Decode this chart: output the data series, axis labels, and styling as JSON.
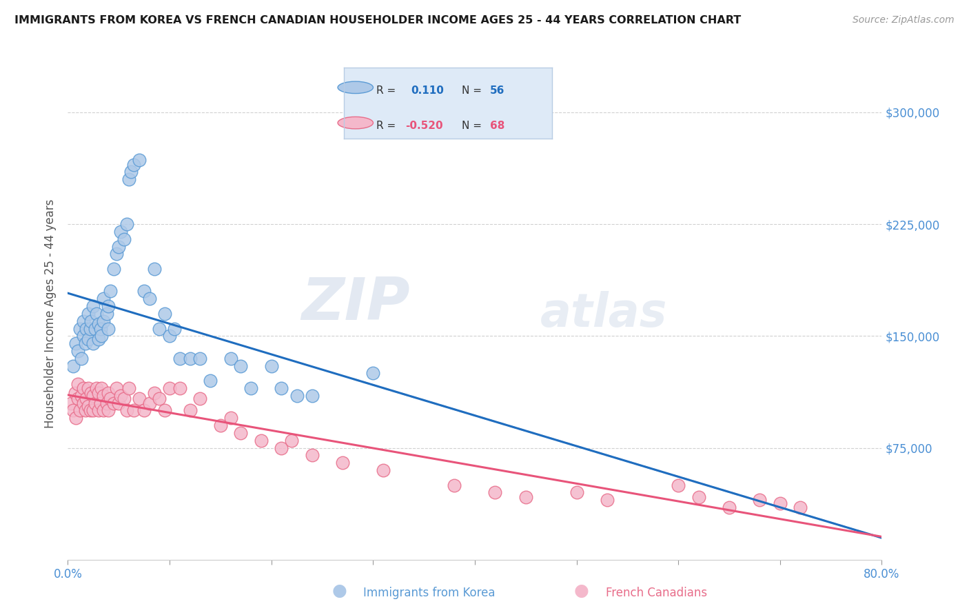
{
  "title": "IMMIGRANTS FROM KOREA VS FRENCH CANADIAN HOUSEHOLDER INCOME AGES 25 - 44 YEARS CORRELATION CHART",
  "source": "Source: ZipAtlas.com",
  "ylabel": "Householder Income Ages 25 - 44 years",
  "xmin": 0.0,
  "xmax": 0.8,
  "ymin": 0,
  "ymax": 330000,
  "ytick_positions": [
    75000,
    150000,
    225000,
    300000
  ],
  "ytick_labels": [
    "$75,000",
    "$150,000",
    "$225,000",
    "$300,000"
  ],
  "xticks": [
    0.0,
    0.1,
    0.2,
    0.3,
    0.4,
    0.5,
    0.6,
    0.7,
    0.8
  ],
  "xtick_labels": [
    "0.0%",
    "",
    "",
    "",
    "",
    "",
    "",
    "",
    "80.0%"
  ],
  "watermark_line1": "ZIP",
  "watermark_line2": "atlas",
  "korea_fill": "#aec9e8",
  "korea_edge": "#5b9bd5",
  "french_fill": "#f4b8cb",
  "french_edge": "#e86d8a",
  "korea_line_color": "#1f6dbf",
  "french_line_color": "#e8547a",
  "korea_dash_color": "#b0c8e0",
  "grid_color": "#d0d0d0",
  "r_korea": "0.110",
  "n_korea": "56",
  "r_french": "-0.520",
  "n_french": "68",
  "legend_bg": "#deeaf7",
  "korea_scatter_x": [
    0.005,
    0.008,
    0.01,
    0.012,
    0.013,
    0.015,
    0.015,
    0.017,
    0.018,
    0.02,
    0.02,
    0.022,
    0.023,
    0.025,
    0.025,
    0.027,
    0.028,
    0.03,
    0.03,
    0.032,
    0.033,
    0.035,
    0.035,
    0.038,
    0.04,
    0.04,
    0.042,
    0.045,
    0.048,
    0.05,
    0.052,
    0.055,
    0.058,
    0.06,
    0.062,
    0.065,
    0.07,
    0.075,
    0.08,
    0.085,
    0.09,
    0.095,
    0.1,
    0.105,
    0.11,
    0.12,
    0.13,
    0.14,
    0.16,
    0.17,
    0.18,
    0.2,
    0.21,
    0.225,
    0.24,
    0.3
  ],
  "korea_scatter_y": [
    130000,
    145000,
    140000,
    155000,
    135000,
    150000,
    160000,
    145000,
    155000,
    148000,
    165000,
    155000,
    160000,
    145000,
    170000,
    155000,
    165000,
    148000,
    158000,
    155000,
    150000,
    160000,
    175000,
    165000,
    155000,
    170000,
    180000,
    195000,
    205000,
    210000,
    220000,
    215000,
    225000,
    255000,
    260000,
    265000,
    268000,
    180000,
    175000,
    195000,
    155000,
    165000,
    150000,
    155000,
    135000,
    135000,
    135000,
    120000,
    135000,
    130000,
    115000,
    130000,
    115000,
    110000,
    110000,
    125000
  ],
  "french_scatter_x": [
    0.003,
    0.005,
    0.007,
    0.008,
    0.01,
    0.01,
    0.012,
    0.013,
    0.015,
    0.015,
    0.017,
    0.018,
    0.02,
    0.02,
    0.022,
    0.023,
    0.025,
    0.025,
    0.027,
    0.028,
    0.03,
    0.03,
    0.032,
    0.033,
    0.035,
    0.035,
    0.038,
    0.04,
    0.04,
    0.042,
    0.045,
    0.048,
    0.05,
    0.052,
    0.055,
    0.058,
    0.06,
    0.065,
    0.07,
    0.075,
    0.08,
    0.085,
    0.09,
    0.095,
    0.1,
    0.11,
    0.12,
    0.13,
    0.15,
    0.16,
    0.17,
    0.19,
    0.21,
    0.22,
    0.24,
    0.27,
    0.31,
    0.38,
    0.42,
    0.45,
    0.5,
    0.53,
    0.6,
    0.62,
    0.65,
    0.68,
    0.7,
    0.72
  ],
  "french_scatter_y": [
    105000,
    100000,
    112000,
    95000,
    108000,
    118000,
    100000,
    110000,
    105000,
    115000,
    100000,
    108000,
    103000,
    115000,
    100000,
    112000,
    100000,
    110000,
    105000,
    115000,
    100000,
    112000,
    105000,
    115000,
    100000,
    110000,
    105000,
    112000,
    100000,
    108000,
    105000,
    115000,
    105000,
    110000,
    108000,
    100000,
    115000,
    100000,
    108000,
    100000,
    105000,
    112000,
    108000,
    100000,
    115000,
    115000,
    100000,
    108000,
    90000,
    95000,
    85000,
    80000,
    75000,
    80000,
    70000,
    65000,
    60000,
    50000,
    45000,
    42000,
    45000,
    40000,
    50000,
    42000,
    35000,
    40000,
    38000,
    35000
  ]
}
